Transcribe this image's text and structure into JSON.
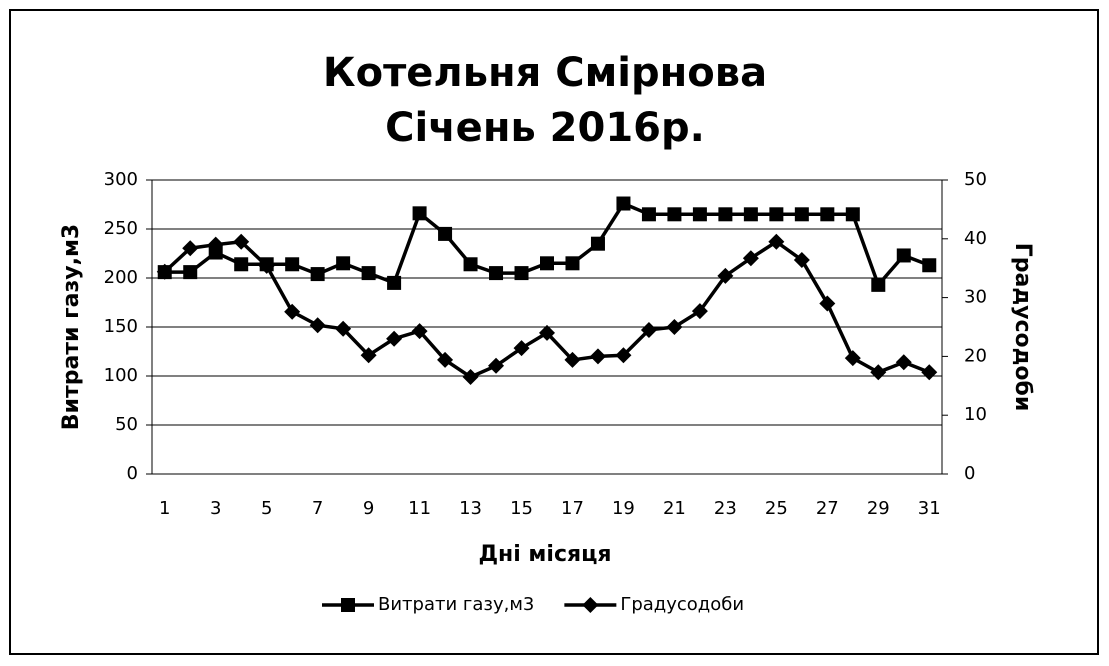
{
  "chart_data": {
    "type": "line",
    "title": "Котельня Смірнова",
    "subtitle": "Січень 2016р.",
    "x_label": "Дні місяця",
    "y_label": "Витрати газу,м3",
    "y2_label": "Градусодоби",
    "categories": [
      1,
      null,
      3,
      null,
      5,
      null,
      7,
      null,
      9,
      null,
      11,
      null,
      13,
      null,
      15,
      null,
      17,
      null,
      19,
      null,
      21,
      null,
      23,
      null,
      25,
      null,
      27,
      null,
      29,
      null,
      31
    ],
    "series": [
      {
        "name": "Витрати газу,м3",
        "color": "#000000",
        "marker": "square",
        "values": [
          206,
          206,
          226,
          214,
          214,
          214,
          204,
          215,
          205,
          195,
          266,
          245,
          214,
          205,
          205,
          215,
          215,
          235,
          276,
          265,
          265,
          265,
          265,
          265,
          265,
          265,
          265,
          265,
          193,
          223,
          213
        ]
      },
      {
        "name": "Градусодоби",
        "color": "#000000",
        "marker": "diamond",
        "axis": "y2",
        "values": [
          34.4,
          38.4,
          39,
          39.5,
          35.4,
          27.6,
          25.3,
          24.7,
          20.2,
          23,
          24.3,
          19.4,
          16.5,
          18.4,
          21.4,
          24,
          19.4,
          20,
          20.2,
          24.5,
          25,
          27.7,
          33.7,
          36.7,
          39.5,
          36.4,
          29,
          19.7,
          17.3,
          19,
          17.3
        ]
      }
    ],
    "ylim": [
      0,
      300
    ],
    "yticks": [
      0,
      50,
      100,
      150,
      200,
      250,
      300
    ],
    "y2lim": [
      0,
      50
    ],
    "y2ticks": [
      0,
      10,
      20,
      30,
      40,
      50
    ],
    "grid": true,
    "legend": "bottom"
  }
}
